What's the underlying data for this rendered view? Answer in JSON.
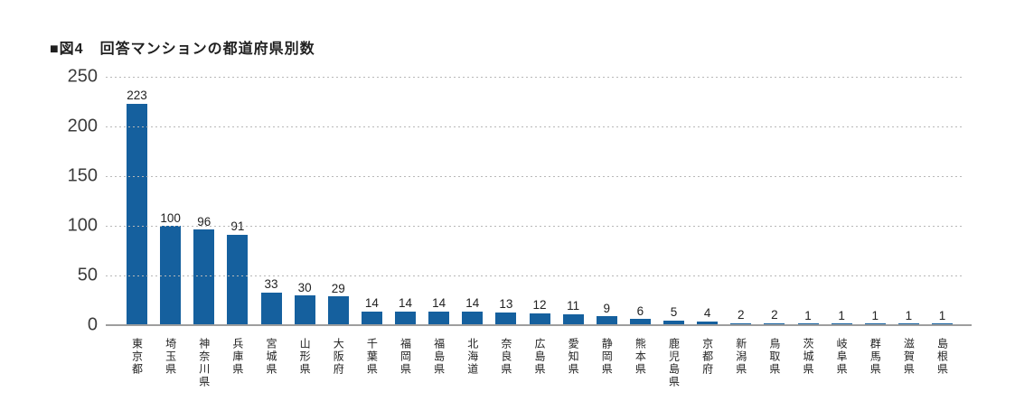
{
  "page": {
    "background": "#ffffff"
  },
  "header": {
    "figure_label": "■図4",
    "title": "回答マンションの都道府県別数"
  },
  "chart_data": {
    "type": "bar",
    "title": "回答マンションの都道府県別数",
    "xlabel": "",
    "ylabel": "",
    "categories": [
      "東京都",
      "埼玉県",
      "神奈川県",
      "兵庫県",
      "宮城県",
      "山形県",
      "大阪府",
      "千葉県",
      "福岡県",
      "福島県",
      "北海道",
      "奈良県",
      "広島県",
      "愛知県",
      "静岡県",
      "熊本県",
      "鹿児島県",
      "京都府",
      "新潟県",
      "鳥取県",
      "茨城県",
      "岐阜県",
      "群馬県",
      "滋賀県",
      "島根県"
    ],
    "values": [
      223,
      100,
      96,
      91,
      33,
      30,
      29,
      14,
      14,
      14,
      14,
      13,
      12,
      11,
      9,
      6,
      5,
      4,
      2,
      2,
      1,
      1,
      1,
      1,
      1
    ],
    "value_labels_shown": true,
    "ylim": [
      0,
      250
    ],
    "yticks": [
      0,
      50,
      100,
      150,
      200,
      250
    ],
    "grid": "horizontal-dotted",
    "legend": "none",
    "colors": {
      "bar": "#15609E",
      "gridline": "#b8b8b8",
      "baseline": "#9e9e9e",
      "title_text": "#1f1f1f",
      "axis_text": "#3c3c3c",
      "value_text": "#222222"
    }
  }
}
